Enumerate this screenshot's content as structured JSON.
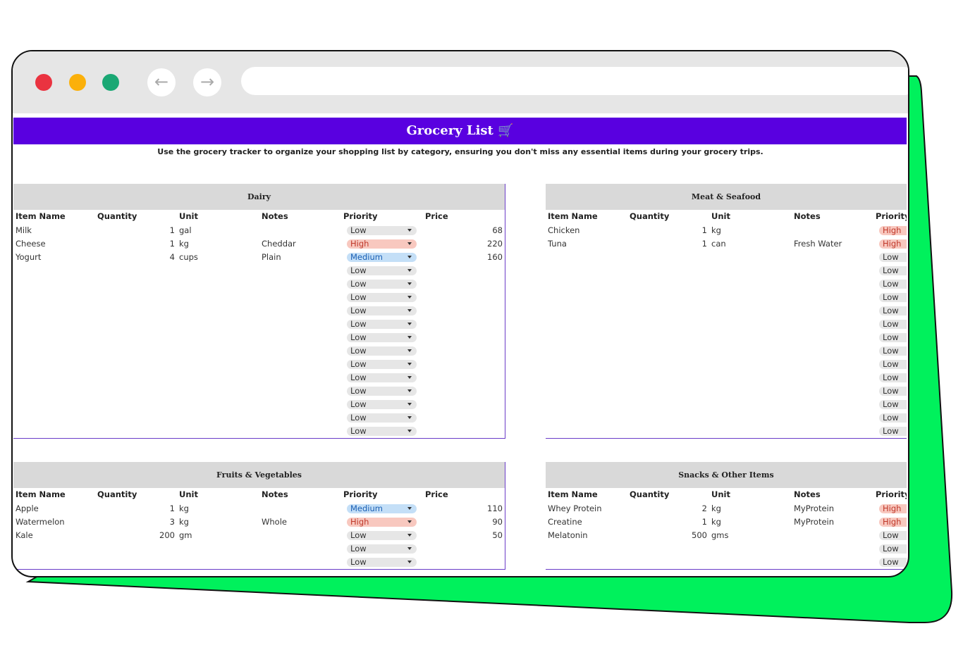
{
  "header": {
    "title": "Grocery List",
    "subtitle": "Use the grocery tracker to organize your shopping list by category, ensuring you don't miss any essential items during your grocery trips."
  },
  "tables": [
    {
      "title": "Dairy",
      "headers": [
        "Item Name",
        "Quantity",
        "Unit",
        "Notes",
        "Priority",
        "Price"
      ],
      "rows": [
        {
          "item": "Milk",
          "quantity": 1,
          "unit": "gal",
          "priority": "Low",
          "price": 68
        },
        {
          "item": "Cheese",
          "quantity": 1,
          "unit": "kg",
          "notes": "Cheddar",
          "priority": "High",
          "price": 220
        },
        {
          "item": "Yogurt",
          "quantity": 4,
          "unit": "cups",
          "notes": "Plain",
          "priority": "Medium",
          "price": 160
        },
        {
          "priority": "Low"
        },
        {
          "priority": "Low"
        },
        {
          "priority": "Low"
        },
        {
          "priority": "Low"
        },
        {
          "priority": "Low"
        },
        {
          "priority": "Low"
        },
        {
          "priority": "Low"
        },
        {
          "priority": "Low"
        },
        {
          "priority": "Low"
        },
        {
          "priority": "Low"
        },
        {
          "priority": "Low"
        },
        {
          "priority": "Low"
        },
        {
          "priority": "Low"
        }
      ]
    },
    {
      "title": "Meat & Seafood",
      "headers": [
        "Item Name",
        "Quantity",
        "Unit",
        "Notes",
        "Priority"
      ],
      "rows": [
        {
          "item": "Chicken",
          "quantity": 1,
          "unit": "kg",
          "priority": "High"
        },
        {
          "item": "Tuna",
          "quantity": 1,
          "unit": "can",
          "notes": "Fresh Water",
          "priority": "High"
        },
        {
          "priority": "Low"
        },
        {
          "priority": "Low"
        },
        {
          "priority": "Low"
        },
        {
          "priority": "Low"
        },
        {
          "priority": "Low"
        },
        {
          "priority": "Low"
        },
        {
          "priority": "Low"
        },
        {
          "priority": "Low"
        },
        {
          "priority": "Low"
        },
        {
          "priority": "Low"
        },
        {
          "priority": "Low"
        },
        {
          "priority": "Low"
        },
        {
          "priority": "Low"
        },
        {
          "priority": "Low"
        }
      ]
    },
    {
      "title": "Fruits & Vegetables",
      "headers": [
        "Item Name",
        "Quantity",
        "Unit",
        "Notes",
        "Priority",
        "Price"
      ],
      "rows": [
        {
          "item": "Apple",
          "quantity": 1,
          "unit": "kg",
          "priority": "Medium",
          "price": 110
        },
        {
          "item": "Watermelon",
          "quantity": 3,
          "unit": "kg",
          "notes": "Whole",
          "priority": "High",
          "price": 90
        },
        {
          "item": "Kale",
          "quantity": 200,
          "unit": "gm",
          "priority": "Low",
          "price": 50
        },
        {
          "priority": "Low"
        },
        {
          "priority": "Low"
        }
      ]
    },
    {
      "title": "Snacks & Other Items",
      "headers": [
        "Item Name",
        "Quantity",
        "Unit",
        "Notes",
        "Priority"
      ],
      "rows": [
        {
          "item": "Whey Protein",
          "quantity": 2,
          "unit": "kg",
          "notes": "MyProtein",
          "priority": "High"
        },
        {
          "item": "Creatine",
          "quantity": 1,
          "unit": "kg",
          "notes": "MyProtein",
          "priority": "High"
        },
        {
          "item": "Melatonin",
          "quantity": 500,
          "unit": "gms",
          "priority": "Low"
        },
        {
          "priority": "Low"
        },
        {
          "priority": "Low"
        }
      ]
    }
  ]
}
